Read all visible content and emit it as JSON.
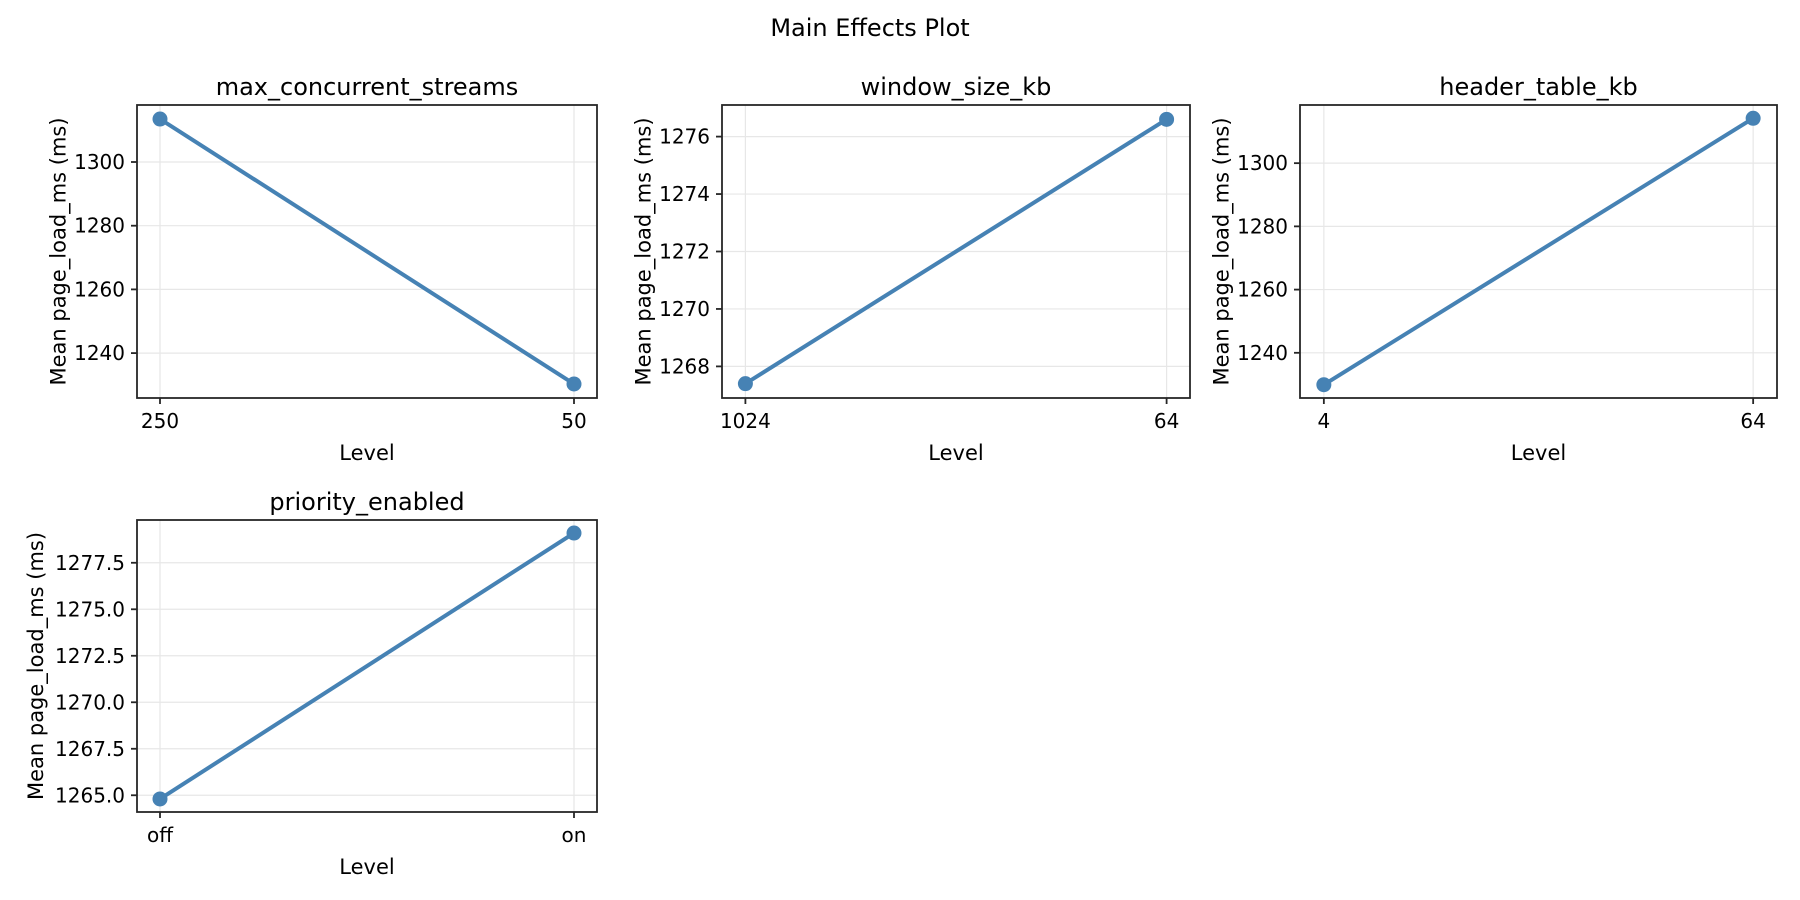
{
  "figure": {
    "title": "Main Effects Plot"
  },
  "style": {
    "line_color": "#4682B4",
    "grid_color": "#e7e7e7",
    "spine_color": "#262626",
    "background": "#ffffff"
  },
  "chart_data": [
    {
      "type": "line",
      "title": "max_concurrent_streams",
      "xlabel": "Level",
      "ylabel": "Mean page_load_ms (ms)",
      "categories": [
        "250",
        "50"
      ],
      "values": [
        1313.5,
        1230.3
      ],
      "ylim": [
        1225.9,
        1317.9
      ],
      "yticks": [
        1240,
        1260,
        1280,
        1300
      ],
      "ytick_labels": [
        "1240",
        "1260",
        "1280",
        "1300"
      ],
      "grid": true,
      "legend": false
    },
    {
      "type": "line",
      "title": "window_size_kb",
      "xlabel": "Level",
      "ylabel": "Mean page_load_ms (ms)",
      "categories": [
        "1024",
        "64"
      ],
      "values": [
        1267.4,
        1276.6
      ],
      "ylim": [
        1266.9,
        1277.1
      ],
      "yticks": [
        1268,
        1270,
        1272,
        1274,
        1276
      ],
      "ytick_labels": [
        "1268",
        "1270",
        "1272",
        "1274",
        "1276"
      ],
      "grid": true,
      "legend": false
    },
    {
      "type": "line",
      "title": "header_table_kb",
      "xlabel": "Level",
      "ylabel": "Mean page_load_ms (ms)",
      "categories": [
        "4",
        "64"
      ],
      "values": [
        1229.9,
        1314.2
      ],
      "ylim": [
        1225.7,
        1318.4
      ],
      "yticks": [
        1240,
        1260,
        1280,
        1300
      ],
      "ytick_labels": [
        "1240",
        "1260",
        "1280",
        "1300"
      ],
      "grid": true,
      "legend": false
    },
    {
      "type": "line",
      "title": "priority_enabled",
      "xlabel": "Level",
      "ylabel": "Mean page_load_ms (ms)",
      "categories": [
        "off",
        "on"
      ],
      "values": [
        1264.8,
        1279.1
      ],
      "ylim": [
        1264.1,
        1279.8
      ],
      "yticks": [
        1265.0,
        1267.5,
        1270.0,
        1272.5,
        1275.0,
        1277.5
      ],
      "ytick_labels": [
        "1265.0",
        "1267.5",
        "1270.0",
        "1272.5",
        "1275.0",
        "1277.5"
      ],
      "grid": true,
      "legend": false
    }
  ]
}
